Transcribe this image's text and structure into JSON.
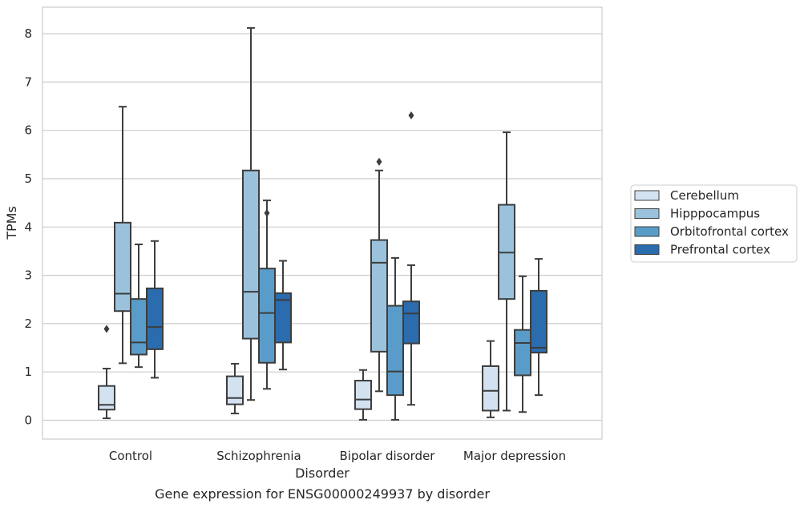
{
  "chart_data": {
    "type": "box",
    "xlabel": "Disorder",
    "ylabel": "TPMs",
    "caption": "Gene expression for ENSG00000249937 by disorder",
    "ylim": [
      -0.4,
      8.55
    ],
    "yticks": [
      0,
      1,
      2,
      3,
      4,
      5,
      6,
      7,
      8
    ],
    "grid": "horizontal",
    "legend_position": "right",
    "categories": [
      "Control",
      "Schizophrenia",
      "Bipolar disorder",
      "Major depression"
    ],
    "series": [
      {
        "name": "Cerebellum",
        "color": "#d3e2f1",
        "boxes": [
          {
            "whisker_low": 0.04,
            "q1": 0.22,
            "median": 0.32,
            "q3": 0.71,
            "whisker_high": 1.07,
            "outliers": [
              1.89
            ]
          },
          {
            "whisker_low": 0.14,
            "q1": 0.33,
            "median": 0.46,
            "q3": 0.91,
            "whisker_high": 1.17,
            "outliers": []
          },
          {
            "whisker_low": 0.01,
            "q1": 0.23,
            "median": 0.43,
            "q3": 0.82,
            "whisker_high": 1.04,
            "outliers": []
          },
          {
            "whisker_low": 0.06,
            "q1": 0.2,
            "median": 0.61,
            "q3": 1.12,
            "whisker_high": 1.64,
            "outliers": []
          }
        ]
      },
      {
        "name": "Hipppocampus",
        "color": "#9ac2dc",
        "boxes": [
          {
            "whisker_low": 1.18,
            "q1": 2.26,
            "median": 2.62,
            "q3": 4.09,
            "whisker_high": 6.49,
            "outliers": []
          },
          {
            "whisker_low": 0.42,
            "q1": 1.69,
            "median": 2.66,
            "q3": 5.17,
            "whisker_high": 8.12,
            "outliers": []
          },
          {
            "whisker_low": 0.6,
            "q1": 1.42,
            "median": 3.26,
            "q3": 3.73,
            "whisker_high": 5.17,
            "outliers": [
              5.35
            ]
          },
          {
            "whisker_low": 0.2,
            "q1": 2.51,
            "median": 3.47,
            "q3": 4.46,
            "whisker_high": 5.96,
            "outliers": []
          }
        ]
      },
      {
        "name": "Orbitofrontal cortex",
        "color": "#5a9cc9",
        "boxes": [
          {
            "whisker_low": 1.1,
            "q1": 1.36,
            "median": 1.61,
            "q3": 2.51,
            "whisker_high": 3.64,
            "outliers": []
          },
          {
            "whisker_low": 0.65,
            "q1": 1.19,
            "median": 2.22,
            "q3": 3.14,
            "whisker_high": 4.55,
            "outliers": [
              4.29
            ]
          },
          {
            "whisker_low": 0.01,
            "q1": 0.52,
            "median": 1.01,
            "q3": 2.37,
            "whisker_high": 3.36,
            "outliers": []
          },
          {
            "whisker_low": 0.17,
            "q1": 0.93,
            "median": 1.6,
            "q3": 1.87,
            "whisker_high": 2.98,
            "outliers": []
          }
        ]
      },
      {
        "name": "Prefrontal cortex",
        "color": "#2a6cad",
        "boxes": [
          {
            "whisker_low": 0.88,
            "q1": 1.47,
            "median": 1.93,
            "q3": 2.73,
            "whisker_high": 3.71,
            "outliers": []
          },
          {
            "whisker_low": 1.05,
            "q1": 1.61,
            "median": 2.49,
            "q3": 2.63,
            "whisker_high": 3.3,
            "outliers": []
          },
          {
            "whisker_low": 0.32,
            "q1": 1.59,
            "median": 2.21,
            "q3": 2.46,
            "whisker_high": 3.21,
            "outliers": [
              6.31
            ]
          },
          {
            "whisker_low": 0.52,
            "q1": 1.4,
            "median": 1.5,
            "q3": 2.68,
            "whisker_high": 3.34,
            "outliers": []
          }
        ]
      }
    ]
  }
}
